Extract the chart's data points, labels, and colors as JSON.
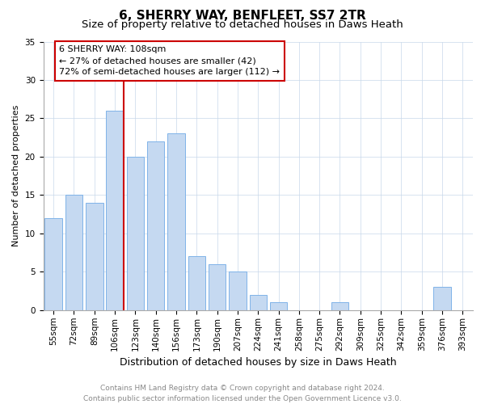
{
  "title": "6, SHERRY WAY, BENFLEET, SS7 2TR",
  "subtitle": "Size of property relative to detached houses in Daws Heath",
  "xlabel": "Distribution of detached houses by size in Daws Heath",
  "ylabel": "Number of detached properties",
  "bar_labels": [
    "55sqm",
    "72sqm",
    "89sqm",
    "106sqm",
    "123sqm",
    "140sqm",
    "156sqm",
    "173sqm",
    "190sqm",
    "207sqm",
    "224sqm",
    "241sqm",
    "258sqm",
    "275sqm",
    "292sqm",
    "309sqm",
    "325sqm",
    "342sqm",
    "359sqm",
    "376sqm",
    "393sqm"
  ],
  "bar_values": [
    12,
    15,
    14,
    26,
    20,
    22,
    23,
    7,
    6,
    5,
    2,
    1,
    0,
    0,
    1,
    0,
    0,
    0,
    0,
    3,
    0
  ],
  "bar_color": "#c5d9f1",
  "bar_edge_color": "#7fb3e8",
  "vline_color": "#cc0000",
  "annotation_text": "6 SHERRY WAY: 108sqm\n← 27% of detached houses are smaller (42)\n72% of semi-detached houses are larger (112) →",
  "annotation_box_color": "#ffffff",
  "annotation_box_edge_color": "#cc0000",
  "ylim": [
    0,
    35
  ],
  "yticks": [
    0,
    5,
    10,
    15,
    20,
    25,
    30,
    35
  ],
  "footer_line1": "Contains HM Land Registry data © Crown copyright and database right 2024.",
  "footer_line2": "Contains public sector information licensed under the Open Government Licence v3.0.",
  "title_fontsize": 11,
  "subtitle_fontsize": 9.5,
  "xlabel_fontsize": 9,
  "ylabel_fontsize": 8,
  "tick_fontsize": 7.5,
  "annotation_fontsize": 8,
  "footer_fontsize": 6.5
}
